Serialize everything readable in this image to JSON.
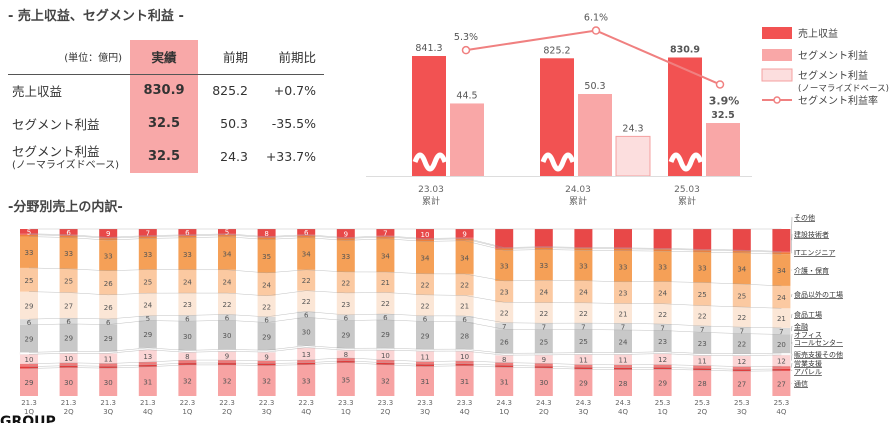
{
  "headings": {
    "top": "- 売上収益、セグメント利益 -",
    "bottom": "-分野別売上の内訳-",
    "group_brand": "GROUP"
  },
  "summary_table": {
    "unit": "(単位：億円)",
    "columns": [
      "実績",
      "前期",
      "前期比"
    ],
    "rows": [
      {
        "label": "売上収益",
        "sublabel": "",
        "actual": "830.9",
        "previous": "825.2",
        "ratio": "+0.7%"
      },
      {
        "label": "セグメント利益",
        "sublabel": "",
        "actual": "32.5",
        "previous": "50.3",
        "ratio": "-35.5%"
      },
      {
        "label": "セグメント利益",
        "sublabel": "(ノーマライズドベース)",
        "actual": "32.5",
        "previous": "24.3",
        "ratio": "+33.7%"
      }
    ]
  },
  "colors": {
    "revenue": "#f25252",
    "segment_profit": "#f9a7a7",
    "normalized_profit": "#fcdede",
    "margin_line": "#f08080",
    "table_highlight": "#f8a8a8"
  },
  "chart_data": [
    {
      "type": "bar",
      "categories": [
        "23.03 累計",
        "24.03 累計",
        "25.03 累計"
      ],
      "category_lines": [
        [
          "23.03",
          "累計"
        ],
        [
          "24.03",
          "累計"
        ],
        [
          "25.03",
          "累計"
        ]
      ],
      "series": [
        {
          "name": "売上収益",
          "values": [
            841.3,
            825.2,
            830.9
          ],
          "labels": [
            "841.3",
            "825.2",
            "830.9"
          ]
        },
        {
          "name": "セグメント利益",
          "values": [
            44.5,
            50.3,
            32.5
          ],
          "labels": [
            "44.5",
            "50.3",
            "32.5"
          ]
        },
        {
          "name": "セグメント利益 (ノーマライズドベース)",
          "values": [
            null,
            24.3,
            null
          ],
          "labels": [
            "",
            "24.3",
            ""
          ]
        },
        {
          "name": "セグメント利益率",
          "type": "line",
          "values": [
            5.3,
            6.1,
            3.9
          ],
          "labels": [
            "5.3%",
            "6.1%",
            "3.9%"
          ]
        }
      ],
      "legend": [
        {
          "label": "売上収益",
          "sub": ""
        },
        {
          "label": "セグメント利益",
          "sub": ""
        },
        {
          "label": "セグメント利益",
          "sub": "(ノーマライズドベース)"
        },
        {
          "label": "セグメント利益率",
          "sub": ""
        }
      ],
      "legend_position": "right",
      "axis_break": true
    },
    {
      "type": "bar",
      "stacked": true,
      "percent": true,
      "categories": [
        "21.3 1Q",
        "21.3 2Q",
        "21.3 3Q",
        "21.3 4Q",
        "22.3 1Q",
        "22.3 2Q",
        "22.3 3Q",
        "22.3 4Q",
        "23.3 1Q",
        "23.3 2Q",
        "23.3 3Q",
        "23.3 4Q",
        "24.3 1Q",
        "24.3 2Q",
        "24.3 3Q",
        "24.3 4Q",
        "25.3 1Q",
        "25.3 2Q",
        "25.3 3Q",
        "25.3 4Q"
      ],
      "category_lines": [
        [
          "21.3",
          "1Q"
        ],
        [
          "21.3",
          "2Q"
        ],
        [
          "21.3",
          "3Q"
        ],
        [
          "21.3",
          "4Q"
        ],
        [
          "22.3",
          "1Q"
        ],
        [
          "22.3",
          "2Q"
        ],
        [
          "22.3",
          "3Q"
        ],
        [
          "22.3",
          "4Q"
        ],
        [
          "23.3",
          "1Q"
        ],
        [
          "23.3",
          "2Q"
        ],
        [
          "23.3",
          "3Q"
        ],
        [
          "23.3",
          "4Q"
        ],
        [
          "24.3",
          "1Q"
        ],
        [
          "24.3",
          "2Q"
        ],
        [
          "24.3",
          "3Q"
        ],
        [
          "24.3",
          "4Q"
        ],
        [
          "25.3",
          "1Q"
        ],
        [
          "25.3",
          "2Q"
        ],
        [
          "25.3",
          "3Q"
        ],
        [
          "25.3",
          "4Q"
        ]
      ],
      "series": [
        {
          "name": "通信",
          "color": "#f7a3a3",
          "values": [
            29,
            30,
            30,
            31,
            32,
            32,
            32,
            33,
            35,
            32,
            31,
            31,
            31,
            30,
            29,
            28,
            29,
            28,
            27,
            27
          ]
        },
        {
          "name": "アパレル",
          "color": "#e23a3a",
          "values": [
            2,
            2,
            2,
            2,
            2,
            2,
            2,
            2,
            2,
            2,
            2,
            2,
            2,
            2,
            2,
            2,
            2,
            2,
            2,
            2
          ]
        },
        {
          "name": "営業支援",
          "color": "#ef7b7b",
          "values": [
            3,
            3,
            3,
            3,
            3,
            3,
            3,
            3,
            3,
            3,
            3,
            3,
            3,
            3,
            3,
            3,
            3,
            3,
            3,
            3
          ]
        },
        {
          "name": "販売支援その他",
          "color": "#fbd5d5",
          "values": [
            10,
            10,
            11,
            13,
            8,
            9,
            9,
            13,
            8,
            10,
            11,
            10,
            8,
            9,
            11,
            11,
            12,
            11,
            12,
            12
          ]
        },
        {
          "name": "コールセンター",
          "color": "#ffffff",
          "values": [
            2,
            2,
            2,
            2,
            2,
            2,
            2,
            2,
            2,
            2,
            2,
            2,
            2,
            2,
            2,
            2,
            2,
            2,
            2,
            2
          ]
        },
        {
          "name": "オフィス",
          "color": "#c8c8c8",
          "values": [
            29,
            29,
            29,
            29,
            30,
            30,
            29,
            30,
            29,
            29,
            29,
            28,
            26,
            25,
            25,
            24,
            23,
            23,
            22,
            20
          ]
        },
        {
          "name": "金融",
          "color": "#d9d9d9",
          "values": [
            6,
            6,
            6,
            5,
            6,
            6,
            6,
            6,
            6,
            6,
            6,
            6,
            7,
            7,
            7,
            7,
            7,
            7,
            7,
            7
          ]
        },
        {
          "name": "食品工場",
          "color": "#fbe6d6",
          "values": [
            29,
            27,
            26,
            24,
            23,
            22,
            22,
            22,
            23,
            22,
            22,
            21,
            22,
            22,
            22,
            21,
            22,
            22,
            22,
            21
          ]
        },
        {
          "name": "食品以外の工場",
          "color": "#fbc9a1",
          "values": [
            25,
            25,
            26,
            25,
            24,
            24,
            24,
            22,
            22,
            21,
            22,
            22,
            23,
            24,
            24,
            23,
            24,
            25,
            25,
            24
          ]
        },
        {
          "name": "介護・保育",
          "color": "#f5a057",
          "values": [
            33,
            33,
            33,
            33,
            33,
            34,
            35,
            34,
            33,
            34,
            34,
            34,
            33,
            33,
            33,
            33,
            33,
            33,
            34,
            34
          ]
        },
        {
          "name": "ITエンジニア",
          "color": "#f07f3a",
          "values": [
            2,
            2,
            2,
            2,
            2,
            2,
            2,
            2,
            2,
            2,
            2,
            2,
            2,
            2,
            2,
            2,
            2,
            2,
            2,
            2
          ]
        },
        {
          "name": "建設技術者",
          "color": "#ec5b5b",
          "values": [
            1,
            1,
            1,
            1,
            1,
            1,
            1,
            1,
            1,
            1,
            1,
            1,
            1,
            1,
            1,
            1,
            1,
            1,
            1,
            1
          ]
        },
        {
          "name": "その他",
          "color": "#e84848",
          "values": [
            5,
            6,
            9,
            7,
            6,
            5,
            8,
            6,
            9,
            7,
            10,
            9,
            20,
            19,
            20,
            20,
            21,
            22,
            23,
            24
          ]
        }
      ],
      "segment_labels": {
        "通信": [
          "29",
          "30",
          "30",
          "31",
          "32",
          "32",
          "32",
          "33",
          "35",
          "32",
          "31",
          "31",
          "31",
          "30",
          "29",
          "28",
          "29",
          "28",
          "27",
          "27"
        ],
        "販売支援その他": [
          "10",
          "10",
          "11",
          "13",
          "8",
          "9",
          "9",
          "13",
          "8",
          "10",
          "11",
          "10",
          "8",
          "9",
          "11",
          "11",
          "12",
          "11",
          "12",
          "12"
        ],
        "オフィス": [
          "29",
          "29",
          "29",
          "29",
          "30",
          "30",
          "29",
          "30",
          "29",
          "29",
          "29",
          "28",
          "26",
          "25",
          "25",
          "24",
          "23",
          "23",
          "22",
          "20"
        ],
        "金融": [
          "6",
          "6",
          "6",
          "5",
          "6",
          "6",
          "6",
          "6",
          "6",
          "6",
          "6",
          "6",
          "7",
          "7",
          "7",
          "7",
          "7",
          "7",
          "7",
          "7"
        ],
        "食品工場": [
          "29",
          "27",
          "26",
          "24",
          "23",
          "22",
          "22",
          "22",
          "23",
          "22",
          "22",
          "21",
          "22",
          "22",
          "22",
          "21",
          "22",
          "22",
          "22",
          "21"
        ],
        "食品以外の工場": [
          "25",
          "25",
          "26",
          "25",
          "24",
          "24",
          "24",
          "22",
          "22",
          "21",
          "22",
          "22",
          "23",
          "24",
          "24",
          "23",
          "24",
          "25",
          "25",
          "24"
        ],
        "介護・保育": [
          "33",
          "33",
          "33",
          "33",
          "33",
          "34",
          "35",
          "34",
          "33",
          "34",
          "34",
          "34",
          "33",
          "33",
          "33",
          "33",
          "33",
          "33",
          "34",
          "34"
        ],
        "その他": [
          "5",
          "6",
          "9",
          "7",
          "6",
          "5",
          "8",
          "6",
          "9",
          "7",
          "10",
          "9",
          "",
          "",
          "",
          "",
          "",
          "",
          "",
          ""
        ]
      },
      "legend_position": "right"
    }
  ]
}
